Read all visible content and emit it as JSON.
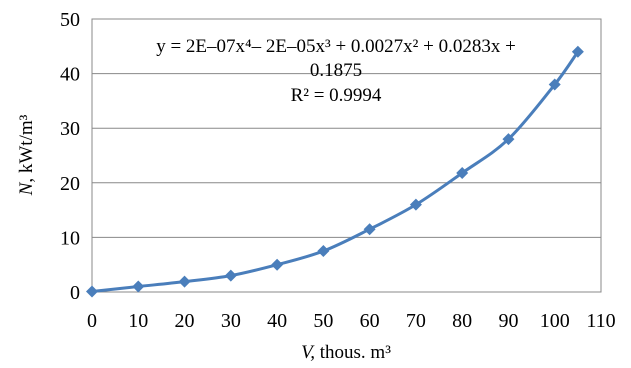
{
  "chart_data": {
    "type": "line",
    "title": "",
    "xlabel_italic": "V,",
    "xlabel_rest": " thous. m³",
    "ylabel_italic": "N",
    "ylabel_rest": ", kWt/m³",
    "xlim": [
      0,
      110
    ],
    "ylim": [
      0,
      50
    ],
    "x_ticks": [
      0,
      10,
      20,
      30,
      40,
      50,
      60,
      70,
      80,
      90,
      100,
      110
    ],
    "y_ticks": [
      0,
      10,
      20,
      30,
      40,
      50
    ],
    "grid": "horizontal",
    "legend": "none",
    "series": [
      {
        "color": "#4a7ebb",
        "marker": "diamond",
        "smooth": true,
        "x": [
          0,
          10,
          20,
          30,
          40,
          50,
          60,
          70,
          80,
          90,
          100,
          105
        ],
        "y": [
          0.1,
          1.0,
          1.9,
          3.0,
          5.0,
          7.5,
          11.5,
          16.0,
          21.8,
          28.0,
          38.0,
          44.0
        ]
      }
    ],
    "annotations": {
      "equation_line1": "y = 2E–07x⁴– 2E–05x³ + 0.0027x² + 0.0283x +",
      "equation_line2": "0.1875",
      "r_squared": "R² = 0.9994"
    }
  }
}
